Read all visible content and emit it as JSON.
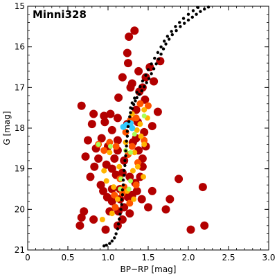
{
  "chart_data": {
    "type": "scatter",
    "title": "Minni328",
    "xlabel": "BP−RP [mag]",
    "ylabel": "G [mag]",
    "xlim": [
      0,
      3.0
    ],
    "ylim": [
      21,
      15
    ],
    "y_inverted": true,
    "grid": false,
    "x_ticks": [
      0,
      0.5,
      1.0,
      1.5,
      2.0,
      2.5,
      3.0
    ],
    "x_tick_labels": [
      "0",
      "0.5",
      "1.0",
      "1.5",
      "2.0",
      "2.5",
      "3.0"
    ],
    "y_ticks": [
      15,
      16,
      17,
      18,
      19,
      20,
      21
    ],
    "y_tick_labels": [
      "15",
      "16",
      "17",
      "18",
      "19",
      "20",
      "21"
    ],
    "colors": {
      "isochrone": "#000000",
      "low": "#b30000",
      "mid": "#ff5500",
      "high": "#ffb400",
      "higher": "#aaff55",
      "top": "#33ccff"
    },
    "series": [
      {
        "points": [
          {
            "x": 0.67,
            "y": 17.45
          },
          {
            "x": 0.82,
            "y": 17.65
          },
          {
            "x": 0.95,
            "y": 17.7
          },
          {
            "x": 1.03,
            "y": 17.65
          },
          {
            "x": 1.12,
            "y": 17.75
          },
          {
            "x": 1.24,
            "y": 17.9
          },
          {
            "x": 1.35,
            "y": 17.55
          },
          {
            "x": 1.46,
            "y": 17.3
          },
          {
            "x": 1.55,
            "y": 17.95
          },
          {
            "x": 1.62,
            "y": 17.6
          },
          {
            "x": 1.38,
            "y": 16.6
          },
          {
            "x": 1.18,
            "y": 16.75
          },
          {
            "x": 1.3,
            "y": 16.9
          },
          {
            "x": 1.43,
            "y": 17.0
          },
          {
            "x": 1.52,
            "y": 16.5
          },
          {
            "x": 1.65,
            "y": 16.35
          },
          {
            "x": 1.28,
            "y": 17.0
          },
          {
            "x": 1.13,
            "y": 17.25
          },
          {
            "x": 1.39,
            "y": 17.1
          },
          {
            "x": 1.57,
            "y": 16.85
          },
          {
            "x": 1.47,
            "y": 16.75
          },
          {
            "x": 1.25,
            "y": 16.4
          },
          {
            "x": 1.26,
            "y": 15.75
          },
          {
            "x": 1.33,
            "y": 15.6
          },
          {
            "x": 1.24,
            "y": 16.15
          },
          {
            "x": 0.8,
            "y": 17.9
          },
          {
            "x": 0.96,
            "y": 17.85
          },
          {
            "x": 0.92,
            "y": 18.25
          },
          {
            "x": 0.75,
            "y": 18.3
          },
          {
            "x": 0.85,
            "y": 18.5
          },
          {
            "x": 0.72,
            "y": 18.7
          },
          {
            "x": 0.88,
            "y": 18.75
          },
          {
            "x": 0.83,
            "y": 18.95
          },
          {
            "x": 0.98,
            "y": 18.9
          },
          {
            "x": 1.05,
            "y": 19.0
          },
          {
            "x": 0.91,
            "y": 19.4
          },
          {
            "x": 0.78,
            "y": 19.2
          },
          {
            "x": 0.94,
            "y": 19.55
          },
          {
            "x": 0.99,
            "y": 19.7
          },
          {
            "x": 1.05,
            "y": 19.8
          },
          {
            "x": 1.02,
            "y": 20.05
          },
          {
            "x": 1.13,
            "y": 20.05
          },
          {
            "x": 1.18,
            "y": 20.25
          },
          {
            "x": 1.12,
            "y": 20.4
          },
          {
            "x": 0.97,
            "y": 20.5
          },
          {
            "x": 0.82,
            "y": 20.25
          },
          {
            "x": 0.67,
            "y": 20.2
          },
          {
            "x": 0.65,
            "y": 20.4
          },
          {
            "x": 0.7,
            "y": 20.05
          },
          {
            "x": 1.3,
            "y": 19.65
          },
          {
            "x": 1.36,
            "y": 19.55
          },
          {
            "x": 1.42,
            "y": 19.75
          },
          {
            "x": 1.5,
            "y": 19.95
          },
          {
            "x": 1.55,
            "y": 19.55
          },
          {
            "x": 1.72,
            "y": 20.0
          },
          {
            "x": 1.77,
            "y": 19.75
          },
          {
            "x": 1.88,
            "y": 19.25
          },
          {
            "x": 2.03,
            "y": 20.5
          },
          {
            "x": 2.18,
            "y": 19.45
          },
          {
            "x": 2.2,
            "y": 20.4
          },
          {
            "x": 1.38,
            "y": 18.55
          },
          {
            "x": 1.43,
            "y": 18.75
          },
          {
            "x": 1.31,
            "y": 18.35
          },
          {
            "x": 1.45,
            "y": 18.1
          },
          {
            "x": 1.37,
            "y": 17.85
          },
          {
            "x": 1.47,
            "y": 18.45
          },
          {
            "x": 1.12,
            "y": 18.55
          },
          {
            "x": 1.2,
            "y": 18.8
          },
          {
            "x": 1.18,
            "y": 19.1
          },
          {
            "x": 1.27,
            "y": 19.2
          },
          {
            "x": 1.34,
            "y": 19.35
          },
          {
            "x": 1.4,
            "y": 19.2
          },
          {
            "x": 1.43,
            "y": 18.95
          },
          {
            "x": 1.1,
            "y": 19.15
          },
          {
            "x": 1.08,
            "y": 18.75
          },
          {
            "x": 1.15,
            "y": 19.5
          },
          {
            "x": 1.25,
            "y": 19.7
          },
          {
            "x": 1.2,
            "y": 19.95
          },
          {
            "x": 1.27,
            "y": 20.1
          },
          {
            "x": 1.15,
            "y": 19.75
          },
          {
            "x": 1.05,
            "y": 19.5
          },
          {
            "x": 1.12,
            "y": 18.3
          },
          {
            "x": 1.0,
            "y": 18.45
          },
          {
            "x": 1.05,
            "y": 18.05
          },
          {
            "x": 1.35,
            "y": 18.25
          }
        ]
      },
      {
        "points": [
          {
            "x": 1.28,
            "y": 17.8
          },
          {
            "x": 1.35,
            "y": 17.75
          },
          {
            "x": 1.4,
            "y": 17.4
          },
          {
            "x": 1.5,
            "y": 17.45
          },
          {
            "x": 1.22,
            "y": 18.1
          },
          {
            "x": 1.3,
            "y": 18.45
          },
          {
            "x": 1.25,
            "y": 18.65
          },
          {
            "x": 1.1,
            "y": 18.45
          },
          {
            "x": 1.02,
            "y": 18.35
          },
          {
            "x": 0.95,
            "y": 18.55
          },
          {
            "x": 1.15,
            "y": 19.25
          },
          {
            "x": 1.2,
            "y": 19.45
          },
          {
            "x": 1.35,
            "y": 19.4
          },
          {
            "x": 1.18,
            "y": 19.6
          },
          {
            "x": 1.27,
            "y": 19.85
          },
          {
            "x": 1.09,
            "y": 19.95
          },
          {
            "x": 1.37,
            "y": 18.85
          },
          {
            "x": 1.45,
            "y": 18.3
          },
          {
            "x": 1.08,
            "y": 19.65
          },
          {
            "x": 0.88,
            "y": 18.4
          }
        ]
      },
      {
        "points": [
          {
            "x": 1.3,
            "y": 17.65
          },
          {
            "x": 1.45,
            "y": 17.55
          },
          {
            "x": 1.49,
            "y": 17.75
          },
          {
            "x": 1.36,
            "y": 18.05
          },
          {
            "x": 1.41,
            "y": 18.2
          },
          {
            "x": 1.33,
            "y": 18.6
          },
          {
            "x": 1.22,
            "y": 18.35
          },
          {
            "x": 1.14,
            "y": 18.95
          },
          {
            "x": 1.31,
            "y": 19.05
          },
          {
            "x": 1.45,
            "y": 18.4
          },
          {
            "x": 1.02,
            "y": 18.6
          },
          {
            "x": 0.95,
            "y": 19.05
          },
          {
            "x": 0.98,
            "y": 19.3
          },
          {
            "x": 1.07,
            "y": 19.45
          },
          {
            "x": 1.24,
            "y": 19.55
          },
          {
            "x": 1.32,
            "y": 19.75
          },
          {
            "x": 1.12,
            "y": 19.75
          },
          {
            "x": 1.05,
            "y": 20.1
          },
          {
            "x": 0.93,
            "y": 20.25
          },
          {
            "x": 1.37,
            "y": 18.95
          },
          {
            "x": 1.44,
            "y": 19.2
          },
          {
            "x": 1.4,
            "y": 17.9
          }
        ]
      },
      {
        "points": [
          {
            "x": 1.03,
            "y": 18.45
          },
          {
            "x": 0.88,
            "y": 18.4
          },
          {
            "x": 1.28,
            "y": 18.6
          },
          {
            "x": 1.16,
            "y": 19.25
          },
          {
            "x": 1.26,
            "y": 19.5
          },
          {
            "x": 1.15,
            "y": 19.5
          },
          {
            "x": 1.45,
            "y": 17.7
          },
          {
            "x": 1.33,
            "y": 18.15
          },
          {
            "x": 1.22,
            "y": 18.55
          },
          {
            "x": 1.28,
            "y": 19.3
          }
        ]
      },
      {
        "points": [
          {
            "x": 1.19,
            "y": 17.97
          },
          {
            "x": 1.28,
            "y": 17.88
          },
          {
            "x": 1.3,
            "y": 18.0
          },
          {
            "x": 1.23,
            "y": 17.92
          }
        ]
      }
    ],
    "isochrone": {
      "points": [
        {
          "x": 0.95,
          "y": 20.9
        },
        {
          "x": 0.98,
          "y": 20.88
        },
        {
          "x": 1.02,
          "y": 20.84
        },
        {
          "x": 1.05,
          "y": 20.78
        },
        {
          "x": 1.08,
          "y": 20.7
        },
        {
          "x": 1.1,
          "y": 20.6
        },
        {
          "x": 1.12,
          "y": 20.48
        },
        {
          "x": 1.13,
          "y": 20.36
        },
        {
          "x": 1.14,
          "y": 20.24
        },
        {
          "x": 1.15,
          "y": 20.12
        },
        {
          "x": 1.16,
          "y": 20.0
        },
        {
          "x": 1.17,
          "y": 19.88
        },
        {
          "x": 1.17,
          "y": 19.76
        },
        {
          "x": 1.18,
          "y": 19.64
        },
        {
          "x": 1.18,
          "y": 19.52
        },
        {
          "x": 1.19,
          "y": 19.4
        },
        {
          "x": 1.19,
          "y": 19.28
        },
        {
          "x": 1.2,
          "y": 19.16
        },
        {
          "x": 1.2,
          "y": 19.04
        },
        {
          "x": 1.21,
          "y": 18.92
        },
        {
          "x": 1.21,
          "y": 18.8
        },
        {
          "x": 1.22,
          "y": 18.68
        },
        {
          "x": 1.22,
          "y": 18.56
        },
        {
          "x": 1.23,
          "y": 18.44
        },
        {
          "x": 1.23,
          "y": 18.32
        },
        {
          "x": 1.24,
          "y": 18.2
        },
        {
          "x": 1.24,
          "y": 18.08
        },
        {
          "x": 1.25,
          "y": 17.96
        },
        {
          "x": 1.26,
          "y": 17.84
        },
        {
          "x": 1.27,
          "y": 17.72
        },
        {
          "x": 1.28,
          "y": 17.62
        },
        {
          "x": 1.3,
          "y": 17.52
        },
        {
          "x": 1.32,
          "y": 17.42
        },
        {
          "x": 1.34,
          "y": 17.33
        },
        {
          "x": 1.36,
          "y": 17.25
        },
        {
          "x": 1.39,
          "y": 17.17
        },
        {
          "x": 1.42,
          "y": 17.08
        },
        {
          "x": 1.45,
          "y": 16.98
        },
        {
          "x": 1.48,
          "y": 16.88
        },
        {
          "x": 1.51,
          "y": 16.78
        },
        {
          "x": 1.54,
          "y": 16.66
        },
        {
          "x": 1.57,
          "y": 16.54
        },
        {
          "x": 1.6,
          "y": 16.42
        },
        {
          "x": 1.63,
          "y": 16.3
        },
        {
          "x": 1.66,
          "y": 16.18
        },
        {
          "x": 1.69,
          "y": 16.05
        },
        {
          "x": 1.72,
          "y": 15.93
        },
        {
          "x": 1.76,
          "y": 15.81
        },
        {
          "x": 1.8,
          "y": 15.7
        },
        {
          "x": 1.85,
          "y": 15.6
        },
        {
          "x": 1.9,
          "y": 15.5
        },
        {
          "x": 1.95,
          "y": 15.42
        },
        {
          "x": 2.0,
          "y": 15.34
        },
        {
          "x": 2.05,
          "y": 15.27
        },
        {
          "x": 2.1,
          "y": 15.2
        },
        {
          "x": 2.15,
          "y": 15.13
        },
        {
          "x": 2.2,
          "y": 15.07
        },
        {
          "x": 2.25,
          "y": 15.02
        },
        {
          "x": 1.28,
          "y": 17.5
        },
        {
          "x": 1.3,
          "y": 17.38
        },
        {
          "x": 1.33,
          "y": 17.26
        },
        {
          "x": 1.36,
          "y": 17.12
        },
        {
          "x": 1.4,
          "y": 16.98
        },
        {
          "x": 1.43,
          "y": 16.84
        },
        {
          "x": 1.47,
          "y": 16.7
        },
        {
          "x": 1.5,
          "y": 16.56
        },
        {
          "x": 1.54,
          "y": 16.42
        },
        {
          "x": 1.58,
          "y": 16.28
        },
        {
          "x": 1.62,
          "y": 16.14
        },
        {
          "x": 1.66,
          "y": 16.0
        },
        {
          "x": 1.7,
          "y": 15.86
        },
        {
          "x": 1.74,
          "y": 15.74
        },
        {
          "x": 1.79,
          "y": 15.62
        },
        {
          "x": 1.84,
          "y": 15.5
        },
        {
          "x": 1.89,
          "y": 15.4
        },
        {
          "x": 1.94,
          "y": 15.3
        },
        {
          "x": 2.0,
          "y": 15.2
        },
        {
          "x": 2.06,
          "y": 15.11
        },
        {
          "x": 2.12,
          "y": 15.03
        }
      ]
    }
  }
}
